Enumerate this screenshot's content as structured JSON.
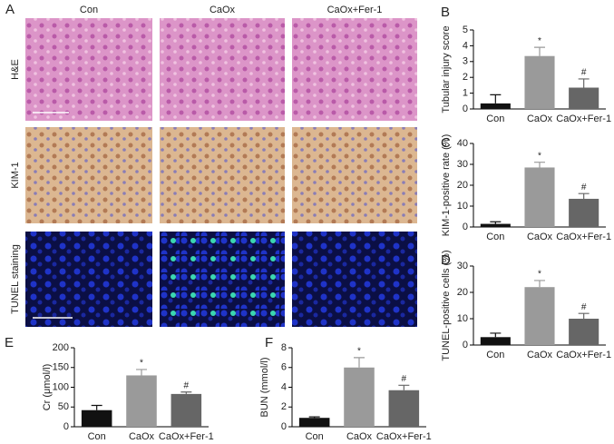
{
  "images": {
    "label": "A",
    "columns": [
      "Con",
      "CaOx",
      "CaOx+Fer-1"
    ],
    "rows": [
      "H&E",
      "KIM-1",
      "TUNEL staining"
    ]
  },
  "chart_data": [
    {
      "type": "bar",
      "panel_label": "B",
      "y_label": "Tubular injury score",
      "categories": [
        "Con",
        "CaOx",
        "CaOx+Fer-1"
      ],
      "values": [
        0.35,
        3.35,
        1.35
      ],
      "errors": [
        0.55,
        0.55,
        0.55
      ],
      "annotations": [
        null,
        "*",
        "#"
      ],
      "colors": [
        "#111111",
        "#9a9a9a",
        "#666666"
      ],
      "ylim": [
        0,
        5
      ],
      "yticks": [
        0,
        1,
        2,
        3,
        4,
        5
      ]
    },
    {
      "type": "bar",
      "panel_label": "C",
      "y_label": "KIM-1-positive rate (%)",
      "categories": [
        "Con",
        "CaOx",
        "CaOx+Fer-1"
      ],
      "values": [
        1.5,
        28.5,
        13.5
      ],
      "errors": [
        1,
        2.5,
        2.5
      ],
      "annotations": [
        null,
        "*",
        "#"
      ],
      "colors": [
        "#111111",
        "#9a9a9a",
        "#666666"
      ],
      "ylim": [
        0,
        40
      ],
      "yticks": [
        0,
        10,
        20,
        30,
        40
      ]
    },
    {
      "type": "bar",
      "panel_label": "D",
      "y_label": "TUNEL-positive cells (%)",
      "categories": [
        "Con",
        "CaOx",
        "CaOx+Fer-1"
      ],
      "values": [
        3,
        22,
        10
      ],
      "errors": [
        1.5,
        2.5,
        2
      ],
      "annotations": [
        null,
        "*",
        "#"
      ],
      "colors": [
        "#111111",
        "#9a9a9a",
        "#666666"
      ],
      "ylim": [
        0,
        30
      ],
      "yticks": [
        0,
        10,
        20,
        30
      ]
    },
    {
      "type": "bar",
      "panel_label": "E",
      "y_label": "Cr (μmol/l)",
      "categories": [
        "Con",
        "CaOx",
        "CaOx+Fer-1"
      ],
      "values": [
        42,
        130,
        83
      ],
      "errors": [
        12,
        15,
        5
      ],
      "annotations": [
        null,
        "*",
        "#"
      ],
      "colors": [
        "#111111",
        "#9a9a9a",
        "#666666"
      ],
      "ylim": [
        0,
        200
      ],
      "yticks": [
        0,
        50,
        100,
        150,
        200
      ]
    },
    {
      "type": "bar",
      "panel_label": "F",
      "y_label": "BUN (mmol/l)",
      "categories": [
        "Con",
        "CaOx",
        "CaOx+Fer-1"
      ],
      "values": [
        0.9,
        6,
        3.7
      ],
      "errors": [
        0.1,
        1,
        0.5
      ],
      "annotations": [
        null,
        "*",
        "#"
      ],
      "colors": [
        "#111111",
        "#9a9a9a",
        "#666666"
      ],
      "ylim": [
        0,
        8
      ],
      "yticks": [
        0,
        2,
        4,
        6,
        8
      ]
    }
  ]
}
